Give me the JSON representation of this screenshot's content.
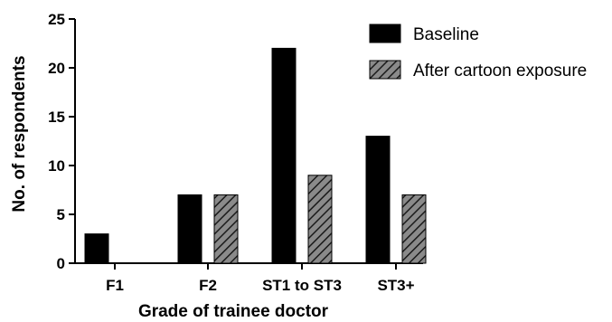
{
  "chart_data": {
    "type": "bar",
    "title": "",
    "xlabel": "Grade of trainee doctor",
    "ylabel": "No. of respondents",
    "categories": [
      "F1",
      "F2",
      "ST1 to ST3",
      "ST3+"
    ],
    "series": [
      {
        "name": "Baseline",
        "values": [
          3,
          7,
          22,
          13
        ],
        "color": "#000000",
        "pattern": "solid"
      },
      {
        "name": "After cartoon exposure",
        "values": [
          0,
          7,
          9,
          7
        ],
        "color": "#7f7f7f",
        "pattern": "diagonal-hatch"
      }
    ],
    "ylim": [
      0,
      25
    ],
    "yticks": [
      0,
      5,
      10,
      15,
      20,
      25
    ],
    "grid": false,
    "legend": "top-right"
  }
}
